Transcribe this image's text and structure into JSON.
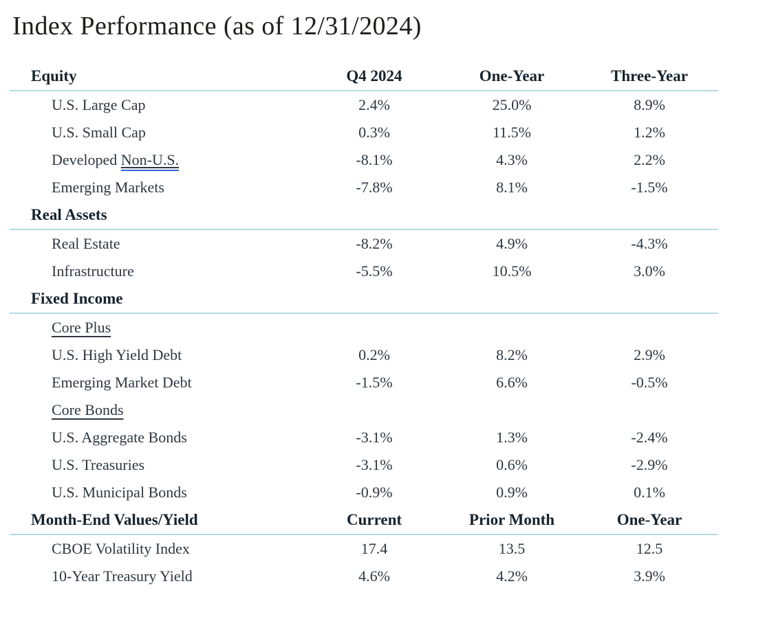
{
  "title": "Index Performance (as of 12/31/2024)",
  "colors": {
    "heading_text": "#16232e",
    "body_text": "#2d3741",
    "divider_rule": "#b7d9e2",
    "link_underline": "#2b62d9",
    "background": "#ffffff"
  },
  "table": {
    "equity": {
      "label": "Equity",
      "columns": [
        "Q4 2024",
        "One-Year",
        "Three-Year"
      ],
      "rows": [
        {
          "label": "U.S. Large Cap",
          "q4": "2.4%",
          "one_year": "25.0%",
          "three_year": "8.9%"
        },
        {
          "label": "U.S. Small Cap",
          "q4": "0.3%",
          "one_year": "11.5%",
          "three_year": "1.2%"
        },
        {
          "label_prefix": "Developed ",
          "label_underlined": "Non-U.S.",
          "q4": "-8.1%",
          "one_year": "4.3%",
          "three_year": "2.2%"
        },
        {
          "label": "Emerging Markets",
          "q4": "-7.8%",
          "one_year": "8.1%",
          "three_year": "-1.5%"
        }
      ]
    },
    "real_assets": {
      "label": "Real Assets",
      "rows": [
        {
          "label": "Real Estate",
          "q4": "-8.2%",
          "one_year": "4.9%",
          "three_year": "-4.3%"
        },
        {
          "label": "Infrastructure",
          "q4": "-5.5%",
          "one_year": "10.5%",
          "three_year": "3.0%"
        }
      ]
    },
    "fixed_income": {
      "label": "Fixed Income",
      "subheader_core_plus": "Core Plus",
      "subheader_core_bonds": "Core Bonds",
      "rows_core_plus": [
        {
          "label": "U.S. High Yield Debt",
          "q4": "0.2%",
          "one_year": "8.2%",
          "three_year": "2.9%"
        },
        {
          "label": "Emerging Market Debt",
          "q4": "-1.5%",
          "one_year": "6.6%",
          "three_year": "-0.5%"
        }
      ],
      "rows_core_bonds": [
        {
          "label": "U.S. Aggregate Bonds",
          "q4": "-3.1%",
          "one_year": "1.3%",
          "three_year": "-2.4%"
        },
        {
          "label": "U.S. Treasuries",
          "q4": "-3.1%",
          "one_year": "0.6%",
          "three_year": "-2.9%"
        },
        {
          "label": "U.S. Municipal Bonds",
          "q4": "-0.9%",
          "one_year": "0.9%",
          "three_year": "0.1%"
        }
      ]
    },
    "month_end": {
      "label": "Month-End Values/Yield",
      "columns": [
        "Current",
        "Prior Month",
        "One-Year"
      ],
      "rows": [
        {
          "label": "CBOE Volatility Index",
          "current": "17.4",
          "prior_month": "13.5",
          "one_year": "12.5"
        },
        {
          "label": "10-Year Treasury Yield",
          "current": "4.6%",
          "prior_month": "4.2%",
          "one_year": "3.9%"
        }
      ]
    }
  }
}
